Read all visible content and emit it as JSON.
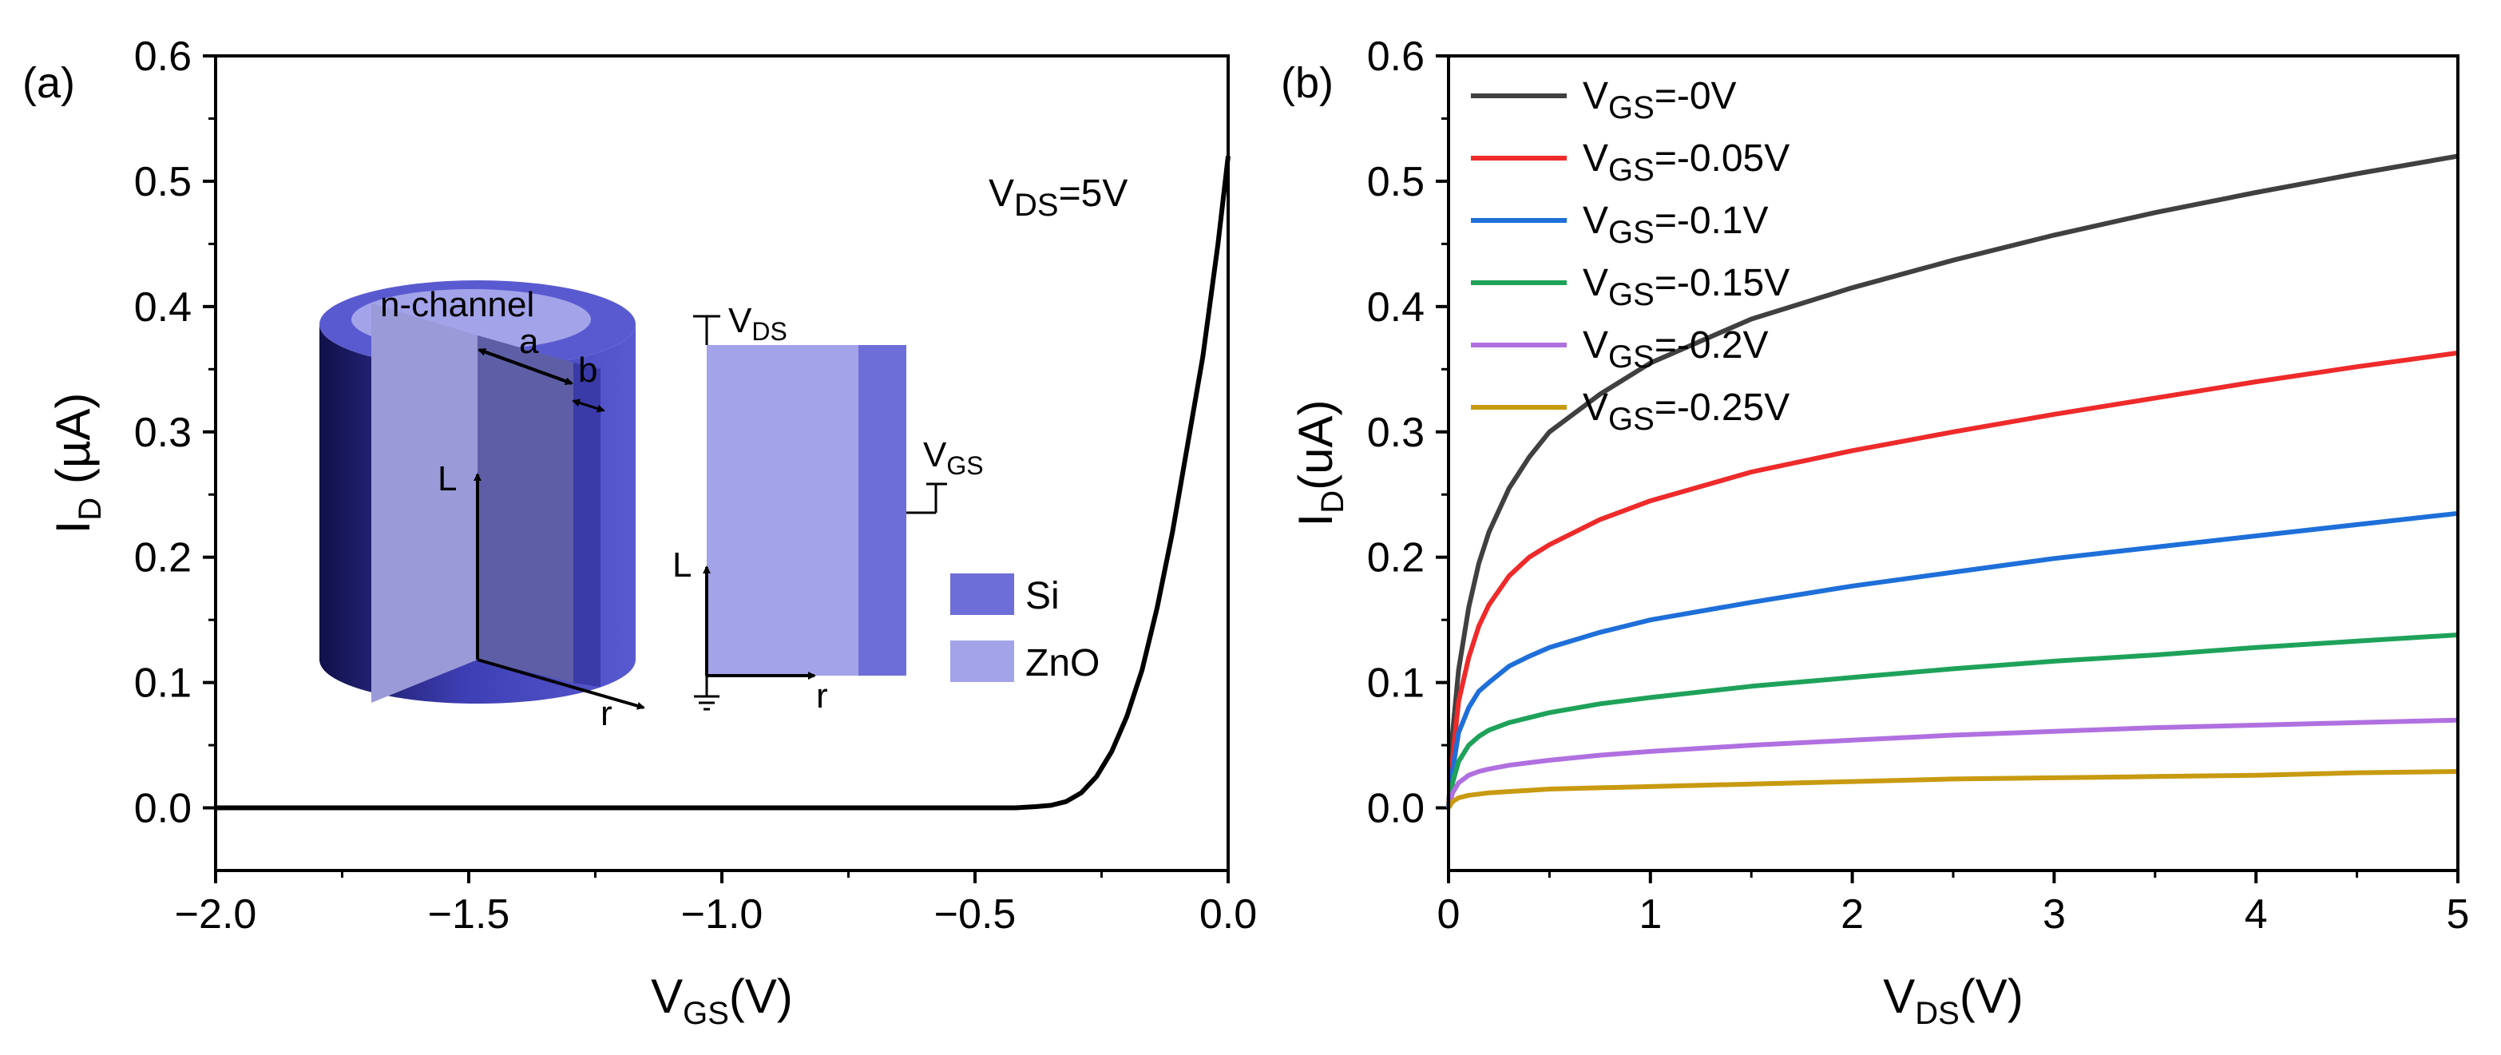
{
  "chart_data": [
    {
      "panel_label": "(a)",
      "type": "line",
      "xlim": [
        -2.0,
        0.0
      ],
      "ylim": [
        -0.05,
        0.6
      ],
      "xticks": [
        -2.0,
        -1.5,
        -1.0,
        -0.5,
        0.0
      ],
      "xtick_labels": [
        "−2.0",
        "−1.5",
        "−1.0",
        "−0.5",
        "0.0"
      ],
      "yticks": [
        0.0,
        0.1,
        0.2,
        0.3,
        0.4,
        0.5,
        0.6
      ],
      "ytick_labels": [
        "0.0",
        "0.1",
        "0.2",
        "0.3",
        "0.4",
        "0.5",
        "0.6"
      ],
      "xlabel": {
        "main": "V",
        "sub": "GS",
        "suffix": "(V)"
      },
      "ylabel": {
        "main": "I",
        "sub": "D",
        "suffix": " (µA)"
      },
      "annotation": {
        "main": "V",
        "sub": "DS",
        "suffix": "=5V"
      },
      "series": [
        {
          "name": "I_D vs V_GS",
          "color": "#000000",
          "x": [
            -2.0,
            -1.5,
            -1.0,
            -0.5,
            -0.42,
            -0.38,
            -0.35,
            -0.32,
            -0.29,
            -0.26,
            -0.23,
            -0.2,
            -0.17,
            -0.14,
            -0.11,
            -0.08,
            -0.05,
            -0.02,
            0.0
          ],
          "y": [
            0.0,
            0.0,
            0.0,
            0.0,
            0.0,
            0.001,
            0.002,
            0.005,
            0.012,
            0.025,
            0.045,
            0.073,
            0.11,
            0.16,
            0.22,
            0.29,
            0.36,
            0.45,
            0.52
          ]
        }
      ],
      "inset": {
        "channel_label": "n-channel",
        "dim_a": "a",
        "dim_b": "b",
        "axis_L": "L",
        "axis_r": "r",
        "vds": {
          "main": "V",
          "sub": "DS"
        },
        "vgs": {
          "main": "V",
          "sub": "GS"
        },
        "legend": [
          {
            "label": "Si",
            "color": "#6e6ed8"
          },
          {
            "label": "ZnO",
            "color": "#a3a3ea"
          }
        ]
      }
    },
    {
      "panel_label": "(b)",
      "type": "line",
      "xlim": [
        0,
        5
      ],
      "ylim": [
        -0.05,
        0.6
      ],
      "xticks": [
        0,
        1,
        2,
        3,
        4,
        5
      ],
      "xtick_labels": [
        "0",
        "1",
        "2",
        "3",
        "4",
        "5"
      ],
      "yticks": [
        0.0,
        0.1,
        0.2,
        0.3,
        0.4,
        0.5,
        0.6
      ],
      "ytick_labels": [
        "0.0",
        "0.1",
        "0.2",
        "0.3",
        "0.4",
        "0.5",
        "0.6"
      ],
      "xlabel": {
        "main": "V",
        "sub": "DS",
        "suffix": "(V)"
      },
      "ylabel": {
        "main": "I",
        "sub": "D",
        "suffix": "(uA)"
      },
      "legend_position": "top-left",
      "x": [
        0,
        0.02,
        0.05,
        0.1,
        0.15,
        0.2,
        0.3,
        0.4,
        0.5,
        0.75,
        1.0,
        1.5,
        2.0,
        2.5,
        3.0,
        3.5,
        4.0,
        4.5,
        5.0
      ],
      "series": [
        {
          "name_main": "V",
          "name_sub": "GS",
          "name_suffix": "=-0V",
          "color": "#404040",
          "values": [
            0,
            0.06,
            0.11,
            0.16,
            0.195,
            0.22,
            0.255,
            0.28,
            0.3,
            0.33,
            0.355,
            0.39,
            0.415,
            0.437,
            0.457,
            0.475,
            0.491,
            0.506,
            0.52
          ]
        },
        {
          "name_main": "V",
          "name_sub": "GS",
          "name_suffix": "=-0.05V",
          "color": "#ee2a2a",
          "values": [
            0,
            0.04,
            0.085,
            0.12,
            0.145,
            0.162,
            0.185,
            0.2,
            0.21,
            0.23,
            0.245,
            0.268,
            0.285,
            0.3,
            0.314,
            0.327,
            0.34,
            0.352,
            0.363
          ]
        },
        {
          "name_main": "V",
          "name_sub": "GS",
          "name_suffix": "=-0.1V",
          "color": "#1e6fd9",
          "values": [
            0,
            0.03,
            0.06,
            0.08,
            0.093,
            0.1,
            0.113,
            0.121,
            0.128,
            0.14,
            0.15,
            0.164,
            0.177,
            0.188,
            0.199,
            0.208,
            0.217,
            0.226,
            0.235
          ]
        },
        {
          "name_main": "V",
          "name_sub": "GS",
          "name_suffix": "=-0.15V",
          "color": "#1ea25a",
          "values": [
            0,
            0.02,
            0.037,
            0.05,
            0.057,
            0.062,
            0.068,
            0.072,
            0.076,
            0.083,
            0.088,
            0.097,
            0.104,
            0.111,
            0.117,
            0.122,
            0.128,
            0.133,
            0.138
          ]
        },
        {
          "name_main": "V",
          "name_sub": "GS",
          "name_suffix": "=-0.2V",
          "color": "#b070e0",
          "values": [
            0,
            0.012,
            0.02,
            0.026,
            0.029,
            0.031,
            0.034,
            0.036,
            0.038,
            0.042,
            0.045,
            0.05,
            0.054,
            0.058,
            0.061,
            0.064,
            0.066,
            0.068,
            0.07
          ]
        },
        {
          "name_main": "V",
          "name_sub": "GS",
          "name_suffix": "=-0.25V",
          "color": "#c89a10",
          "values": [
            0,
            0.005,
            0.008,
            0.01,
            0.011,
            0.012,
            0.013,
            0.014,
            0.015,
            0.016,
            0.017,
            0.019,
            0.021,
            0.023,
            0.024,
            0.025,
            0.026,
            0.028,
            0.029
          ]
        }
      ]
    }
  ]
}
